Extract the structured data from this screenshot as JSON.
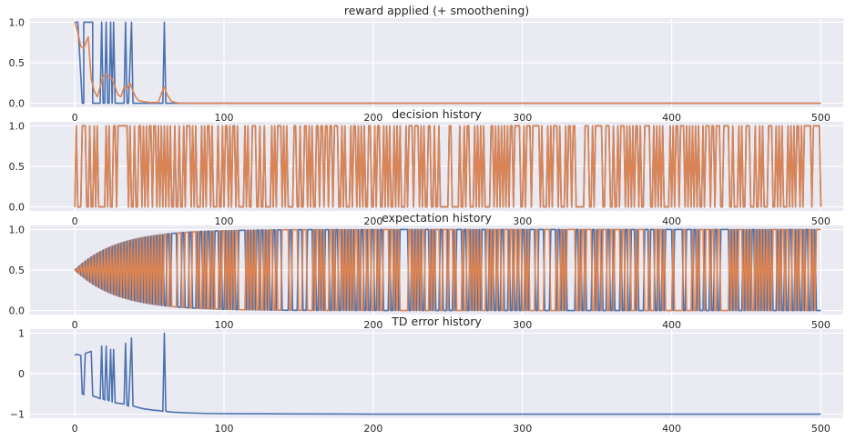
{
  "chart_data": [
    {
      "type": "line",
      "title": "reward applied (+ smoothening)",
      "xlim": [
        -30,
        515
      ],
      "ylim": [
        -0.05,
        1.05
      ],
      "xticks": [
        0,
        100,
        200,
        300,
        400,
        500
      ],
      "yticks": [
        0.0,
        0.5,
        1.0
      ],
      "ytick_labels": [
        "0.0",
        "0.5",
        "1.0"
      ],
      "grid": true,
      "colors": [
        "#4c72b0",
        "#dd8452"
      ],
      "series": [
        {
          "points": [
            [
              0,
              1
            ],
            [
              2,
              1
            ],
            [
              4,
              0.35
            ],
            [
              5,
              0
            ],
            [
              6,
              0
            ],
            [
              6,
              1
            ],
            [
              12,
              1
            ],
            [
              12,
              0
            ],
            [
              17,
              0
            ],
            [
              18,
              1
            ],
            [
              19,
              0
            ],
            [
              20,
              0
            ],
            [
              21,
              1
            ],
            [
              22,
              0
            ],
            [
              23,
              0
            ],
            [
              24,
              1
            ],
            [
              25,
              0
            ],
            [
              26,
              1
            ],
            [
              27,
              0
            ],
            [
              33,
              0
            ],
            [
              34,
              1
            ],
            [
              35,
              0
            ],
            [
              36,
              0
            ],
            [
              38,
              1
            ],
            [
              39,
              0
            ],
            [
              59,
              0
            ],
            [
              60,
              1
            ],
            [
              61,
              0
            ],
            [
              500,
              0
            ]
          ]
        },
        {
          "points": [
            [
              0,
              1
            ],
            [
              2,
              0.88
            ],
            [
              4,
              0.7
            ],
            [
              6,
              0.68
            ],
            [
              9,
              0.82
            ],
            [
              11,
              0.3
            ],
            [
              13,
              0.15
            ],
            [
              15,
              0.08
            ],
            [
              17,
              0.2
            ],
            [
              19,
              0.33
            ],
            [
              21,
              0.36
            ],
            [
              23,
              0.33
            ],
            [
              25,
              0.3
            ],
            [
              27,
              0.2
            ],
            [
              29,
              0.1
            ],
            [
              31,
              0.08
            ],
            [
              33,
              0.2
            ],
            [
              35,
              0.18
            ],
            [
              37,
              0.25
            ],
            [
              39,
              0.15
            ],
            [
              41,
              0.07
            ],
            [
              43,
              0.03
            ],
            [
              50,
              0.01
            ],
            [
              56,
              0.01
            ],
            [
              58,
              0.12
            ],
            [
              60,
              0.2
            ],
            [
              62,
              0.1
            ],
            [
              65,
              0.02
            ],
            [
              70,
              0
            ],
            [
              500,
              0
            ]
          ]
        }
      ]
    },
    {
      "type": "line",
      "title": "decision history",
      "xlim": [
        -30,
        515
      ],
      "ylim": [
        -0.05,
        1.05
      ],
      "xticks": [
        0,
        100,
        200,
        300,
        400,
        500
      ],
      "yticks": [
        0.0,
        0.5,
        1.0
      ],
      "ytick_labels": [
        "0.0",
        "0.5",
        "1.0"
      ],
      "grid": true,
      "colors": [
        "#4c72b0",
        "#dd8452"
      ],
      "pattern": "binary, each step alternating between 0 and 1 (two series in anti-phase, 0–500)"
    },
    {
      "type": "line",
      "title": "expectation history",
      "xlim": [
        -30,
        515
      ],
      "ylim": [
        -0.05,
        1.05
      ],
      "xticks": [
        0,
        100,
        200,
        300,
        400,
        500
      ],
      "yticks": [
        0.0,
        0.5,
        1.0
      ],
      "ytick_labels": [
        "0.0",
        "0.5",
        "1.0"
      ],
      "grid": true,
      "colors": [
        "#4c72b0",
        "#dd8452"
      ],
      "pattern": "oscillation starting at 0.5 whose envelope widens to the full 0–1 range by about step 90, then rapid alternation between 0 and 1 up to 500"
    },
    {
      "type": "line",
      "title": "TD error history",
      "xlim": [
        -30,
        515
      ],
      "ylim": [
        -1.1,
        1.1
      ],
      "xticks": [
        0,
        100,
        200,
        300,
        400,
        500
      ],
      "yticks": [
        -1,
        0,
        1
      ],
      "ytick_labels": [
        "−1",
        "0",
        "1"
      ],
      "grid": true,
      "colors": [
        "#4c72b0"
      ],
      "series": [
        {
          "points": [
            [
              0,
              0.45
            ],
            [
              1,
              0.48
            ],
            [
              4,
              0.45
            ],
            [
              5,
              -0.5
            ],
            [
              6,
              -0.52
            ],
            [
              7,
              0.5
            ],
            [
              11,
              0.55
            ],
            [
              12,
              -0.55
            ],
            [
              16,
              -0.6
            ],
            [
              17,
              -0.62
            ],
            [
              18,
              0.68
            ],
            [
              19,
              -0.63
            ],
            [
              20,
              -0.65
            ],
            [
              21,
              0.68
            ],
            [
              22,
              -0.65
            ],
            [
              23,
              -0.67
            ],
            [
              24,
              0.6
            ],
            [
              25,
              -0.7
            ],
            [
              26,
              0.6
            ],
            [
              27,
              -0.72
            ],
            [
              33,
              -0.75
            ],
            [
              34,
              0.75
            ],
            [
              35,
              -0.78
            ],
            [
              36,
              -0.8
            ],
            [
              38,
              0.88
            ],
            [
              39,
              -0.8
            ],
            [
              45,
              -0.86
            ],
            [
              52,
              -0.9
            ],
            [
              58,
              -0.92
            ],
            [
              59,
              -0.93
            ],
            [
              60,
              1
            ],
            [
              61,
              -0.93
            ],
            [
              65,
              -0.95
            ],
            [
              75,
              -0.97
            ],
            [
              90,
              -0.985
            ],
            [
              110,
              -0.99
            ],
            [
              150,
              -0.995
            ],
            [
              200,
              -1
            ],
            [
              500,
              -1
            ]
          ]
        }
      ]
    }
  ]
}
